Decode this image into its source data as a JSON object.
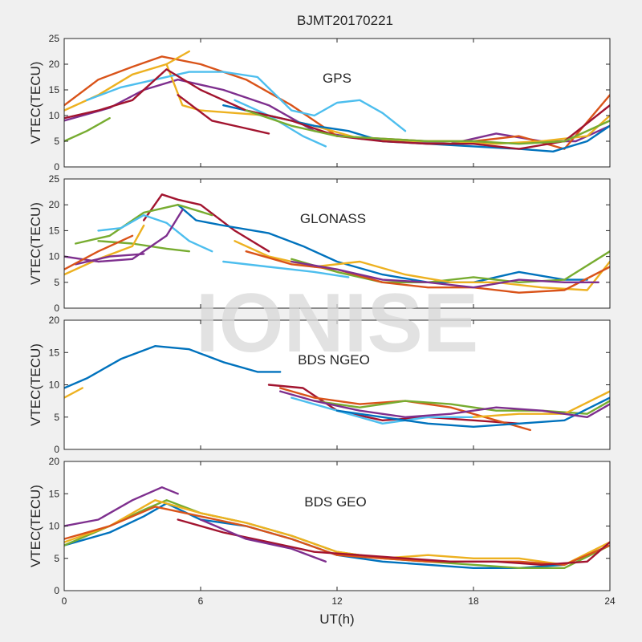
{
  "figure": {
    "title": "BJMT20170221",
    "xlabel": "UT(h)",
    "watermark": "IONISE"
  },
  "chart_data": [
    {
      "type": "line",
      "panel_label": "GPS",
      "ylabel": "VTEC(TECU)",
      "xlim": [
        0,
        24
      ],
      "ylim": [
        0,
        25
      ],
      "xticks": [
        0,
        6,
        12,
        18,
        24
      ],
      "yticks": [
        0,
        5,
        10,
        15,
        20,
        25
      ],
      "series": [
        {
          "color": "#7e2f8e",
          "x": [
            0,
            2,
            3.5,
            5,
            7,
            9,
            11,
            13,
            15,
            17,
            19,
            21,
            22.5,
            24
          ],
          "y": [
            9,
            11.5,
            15,
            17,
            15,
            12,
            7,
            5.5,
            5,
            4.5,
            6.5,
            5,
            5,
            8
          ]
        },
        {
          "color": "#d95319",
          "x": [
            0,
            1.5,
            3,
            4.3,
            6,
            8,
            10,
            12,
            14,
            16,
            18,
            20,
            22,
            24
          ],
          "y": [
            12,
            17,
            19.5,
            21.5,
            20,
            17,
            12,
            6,
            5.5,
            5,
            5,
            6,
            3.5,
            14
          ]
        },
        {
          "color": "#edb120",
          "x": [
            0,
            1.5,
            3,
            4.5,
            5.5
          ],
          "y": [
            11,
            14,
            18,
            20,
            22.5
          ]
        },
        {
          "color": "#edb120",
          "x": [
            4.5,
            5.2,
            6,
            7.5,
            9,
            11,
            13,
            15,
            17,
            19,
            21,
            23,
            24
          ],
          "y": [
            20,
            12,
            11,
            10.5,
            10,
            8,
            5.5,
            5,
            5,
            4.5,
            5,
            6,
            10
          ]
        },
        {
          "color": "#4dbeee",
          "x": [
            1,
            2.5,
            4,
            5.5,
            7,
            8.5,
            10,
            11,
            12,
            13,
            14,
            15
          ],
          "y": [
            13,
            15.5,
            17,
            18.5,
            18.5,
            17.5,
            11,
            10,
            12.5,
            13,
            10.5,
            7
          ]
        },
        {
          "color": "#4dbeee",
          "x": [
            7.5,
            9,
            10.5,
            11.5
          ],
          "y": [
            13,
            10,
            6,
            4
          ]
        },
        {
          "color": "#0072bd",
          "x": [
            7,
            9,
            11,
            12.5,
            14,
            16,
            18,
            20,
            21.5,
            23,
            24
          ],
          "y": [
            12,
            10,
            8,
            7,
            5,
            4.5,
            4,
            3.5,
            3,
            5,
            8
          ]
        },
        {
          "color": "#a2142f",
          "x": [
            0,
            1.5,
            3,
            4.5,
            6,
            8,
            10,
            12,
            14,
            16,
            18,
            20,
            22,
            24
          ],
          "y": [
            9.5,
            11,
            13,
            19,
            15,
            11,
            9,
            6,
            5,
            4.5,
            4.5,
            3.5,
            5,
            12
          ]
        },
        {
          "color": "#a2142f",
          "x": [
            5,
            6.5,
            8,
            9
          ],
          "y": [
            14,
            9,
            7.5,
            6.5
          ]
        },
        {
          "color": "#77ac30",
          "x": [
            0,
            1,
            2
          ],
          "y": [
            5,
            7,
            9.5
          ]
        },
        {
          "color": "#77ac30",
          "x": [
            8,
            10,
            12,
            14,
            16,
            18,
            20,
            22,
            24
          ],
          "y": [
            11,
            8,
            6,
            5.5,
            5,
            5,
            4.5,
            5,
            9
          ]
        }
      ]
    },
    {
      "type": "line",
      "panel_label": "GLONASS",
      "ylabel": "VTEC(TECU)",
      "xlim": [
        0,
        24
      ],
      "ylim": [
        0,
        25
      ],
      "xticks": [
        0,
        6,
        12,
        18,
        24
      ],
      "yticks": [
        0,
        5,
        10,
        15,
        20,
        25
      ],
      "series": [
        {
          "color": "#a2142f",
          "x": [
            3.5,
            4.3,
            5,
            6,
            7.5,
            9
          ],
          "y": [
            17,
            22,
            21,
            20,
            15,
            11
          ]
        },
        {
          "color": "#0072bd",
          "x": [
            5,
            5.8,
            7,
            9,
            10.5,
            12,
            14,
            16,
            18,
            20,
            22,
            23
          ],
          "y": [
            20,
            17,
            16,
            14.5,
            12,
            9,
            6.5,
            5,
            5,
            7,
            5.5,
            5.5
          ]
        },
        {
          "color": "#77ac30",
          "x": [
            0.5,
            2,
            3.5,
            5,
            6.5
          ],
          "y": [
            12.5,
            14,
            18.5,
            20,
            18
          ]
        },
        {
          "color": "#77ac30",
          "x": [
            1.5,
            3,
            4.5,
            5.5
          ],
          "y": [
            13,
            12.5,
            11.5,
            11
          ]
        },
        {
          "color": "#77ac30",
          "x": [
            10,
            12,
            14,
            16,
            18,
            20,
            22,
            24
          ],
          "y": [
            9.5,
            7,
            5,
            5,
            6,
            5,
            5.5,
            11
          ]
        },
        {
          "color": "#4dbeee",
          "x": [
            1.5,
            2.5,
            3.5,
            4.5,
            5.5,
            6.5
          ],
          "y": [
            15,
            15.5,
            18,
            16.5,
            13,
            11
          ]
        },
        {
          "color": "#edb120",
          "x": [
            0,
            1.5,
            3,
            3.5
          ],
          "y": [
            6.5,
            9.5,
            12,
            16
          ]
        },
        {
          "color": "#edb120",
          "x": [
            7.5,
            9,
            11,
            13,
            15,
            17,
            19,
            21,
            23,
            24
          ],
          "y": [
            13,
            10,
            8,
            9,
            6.5,
            5,
            5,
            4,
            3.5,
            9
          ]
        },
        {
          "color": "#7e2f8e",
          "x": [
            0,
            1.5,
            3,
            4.5,
            5.2
          ],
          "y": [
            10,
            9,
            9.5,
            14,
            19
          ]
        },
        {
          "color": "#7e2f8e",
          "x": [
            0.5,
            2,
            3.5
          ],
          "y": [
            8.5,
            10,
            10.5
          ]
        },
        {
          "color": "#d95319",
          "x": [
            0,
            1.5,
            3
          ],
          "y": [
            7.5,
            11,
            14
          ]
        },
        {
          "color": "#d95319",
          "x": [
            8,
            10,
            12,
            14,
            16,
            18,
            20,
            22,
            24
          ],
          "y": [
            11,
            8.5,
            7.5,
            5,
            4,
            4,
            3,
            3.5,
            8
          ]
        },
        {
          "color": "#7e2f8e",
          "x": [
            10,
            12,
            14,
            16,
            18,
            20,
            22,
            23.5
          ],
          "y": [
            9,
            7.5,
            5.5,
            5,
            4,
            5.5,
            5,
            5
          ]
        },
        {
          "color": "#4dbeee",
          "x": [
            7,
            9,
            11,
            12.5
          ],
          "y": [
            9,
            8,
            7,
            6
          ]
        }
      ]
    },
    {
      "type": "line",
      "panel_label": "BDS NGEO",
      "ylabel": "VTEC(TECU)",
      "xlim": [
        0,
        24
      ],
      "ylim": [
        0,
        20
      ],
      "xticks": [
        0,
        6,
        12,
        18,
        24
      ],
      "yticks": [
        0,
        5,
        10,
        15,
        20
      ],
      "series": [
        {
          "color": "#0072bd",
          "x": [
            0,
            1,
            2.5,
            4,
            5.5,
            7,
            8.5,
            9.5
          ],
          "y": [
            9.5,
            11,
            14,
            16,
            15.5,
            13.5,
            12,
            12
          ]
        },
        {
          "color": "#edb120",
          "x": [
            0,
            0.8
          ],
          "y": [
            8,
            9.5
          ]
        },
        {
          "color": "#a2142f",
          "x": [
            9,
            10.5,
            12,
            14,
            16,
            18,
            20
          ],
          "y": [
            10,
            9.5,
            6,
            4.5,
            5,
            4.5,
            4
          ]
        },
        {
          "color": "#d95319",
          "x": [
            9.5,
            11,
            13,
            15,
            17,
            19,
            20.5
          ],
          "y": [
            9.5,
            8,
            7,
            7.5,
            6.5,
            4.5,
            3
          ]
        },
        {
          "color": "#77ac30",
          "x": [
            11,
            13,
            15,
            17,
            19,
            21,
            23,
            24
          ],
          "y": [
            7.5,
            6.5,
            7.5,
            7,
            6,
            6,
            5.5,
            7.5
          ]
        },
        {
          "color": "#4dbeee",
          "x": [
            10,
            12,
            14,
            16,
            18
          ],
          "y": [
            8,
            6,
            4,
            5,
            5
          ]
        },
        {
          "color": "#0072bd",
          "x": [
            12,
            14,
            16,
            18,
            20,
            22,
            24
          ],
          "y": [
            6,
            5,
            4,
            3.5,
            4,
            4.5,
            8
          ]
        },
        {
          "color": "#edb120",
          "x": [
            18,
            20,
            22,
            24
          ],
          "y": [
            5,
            5.5,
            5.5,
            9
          ]
        },
        {
          "color": "#7e2f8e",
          "x": [
            9.5,
            11,
            13,
            15,
            17,
            19,
            21,
            23,
            24
          ],
          "y": [
            9,
            7.5,
            6,
            5,
            5.5,
            6.5,
            6,
            5,
            7
          ]
        }
      ]
    },
    {
      "type": "line",
      "panel_label": "BDS GEO",
      "ylabel": "VTEC(TECU)",
      "xlim": [
        0,
        24
      ],
      "ylim": [
        0,
        20
      ],
      "xticks": [
        0,
        6,
        12,
        18,
        24
      ],
      "yticks": [
        0,
        5,
        10,
        15,
        20
      ],
      "series": [
        {
          "color": "#7e2f8e",
          "x": [
            0,
            1.5,
            3,
            4.3,
            5
          ],
          "y": [
            10,
            11,
            14,
            16,
            15
          ]
        },
        {
          "color": "#0072bd",
          "x": [
            0,
            2,
            3.5,
            4.5,
            6,
            8,
            10,
            12,
            14,
            16,
            18,
            20,
            22,
            24
          ],
          "y": [
            7,
            9,
            11.5,
            13.5,
            11,
            10,
            8,
            5.5,
            4.5,
            4,
            3.5,
            3.5,
            4,
            7
          ]
        },
        {
          "color": "#77ac30",
          "x": [
            0,
            2,
            3.5,
            4.5,
            6,
            8,
            10,
            12,
            14,
            16,
            18,
            20,
            22,
            24
          ],
          "y": [
            7,
            10,
            12.5,
            14,
            12,
            10.5,
            8.5,
            6,
            5,
            4.5,
            4,
            3.5,
            3.5,
            7
          ]
        },
        {
          "color": "#edb120",
          "x": [
            0,
            2,
            4,
            6,
            8,
            10,
            12,
            14,
            16,
            18,
            20,
            22,
            24
          ],
          "y": [
            7.5,
            10,
            14,
            12,
            10.5,
            8.5,
            6,
            5,
            5.5,
            5,
            5,
            4,
            7.5
          ]
        },
        {
          "color": "#d95319",
          "x": [
            0,
            2,
            4,
            6,
            8,
            10,
            12,
            14,
            16,
            18,
            20,
            22,
            24
          ],
          "y": [
            8,
            10,
            13,
            11.5,
            10,
            8,
            5.5,
            5,
            4.5,
            4.5,
            4.5,
            4,
            7
          ]
        },
        {
          "color": "#a2142f",
          "x": [
            5,
            7,
            9,
            11,
            13,
            15,
            17,
            19,
            21,
            23,
            24
          ],
          "y": [
            11,
            9,
            7.5,
            6,
            5.5,
            5,
            4.5,
            4.5,
            4,
            4.5,
            7.5
          ]
        },
        {
          "color": "#7e2f8e",
          "x": [
            6,
            8,
            10,
            11.5
          ],
          "y": [
            11,
            8,
            6.5,
            4.5
          ]
        }
      ]
    }
  ]
}
